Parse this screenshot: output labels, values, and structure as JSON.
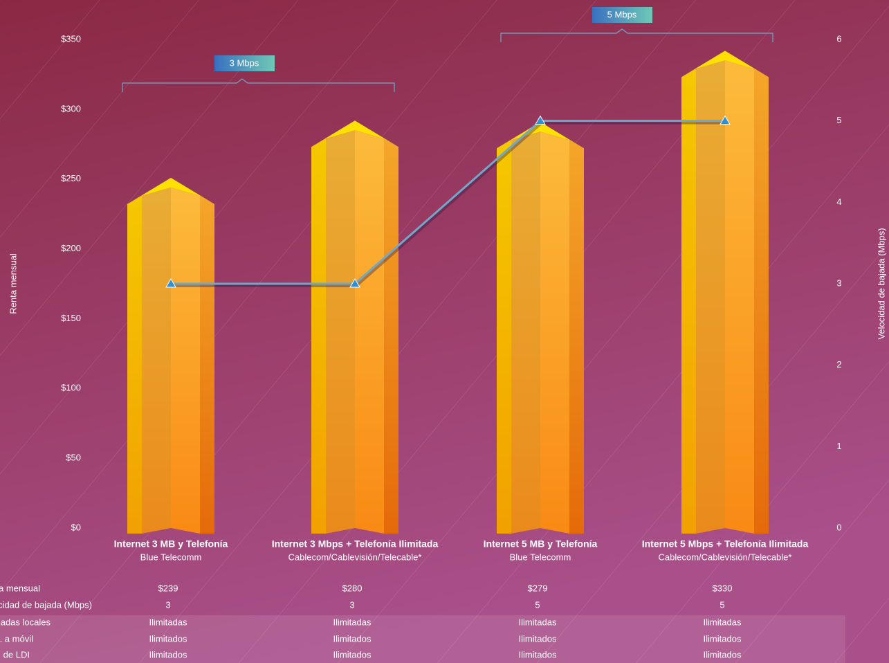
{
  "chart_data": {
    "type": "bar",
    "categories": [
      "Internet 3 MB y Telefonía",
      "Internet 3 Mbps + Telefonía Ilimitada",
      "Internet 5 MB y Telefonía",
      "Internet 5 Mbps + Telefonía Ilimitada"
    ],
    "category_sublabels": [
      "Blue Telecomm",
      "Cablecom/Cablevisión/Telecable*",
      "Blue Telecomm",
      "Cablecom/Cablevisión/Telecable*"
    ],
    "series": [
      {
        "name": "Renta mensual",
        "type": "bar",
        "color": "#fbb03b",
        "values": [
          239,
          280,
          279,
          330
        ],
        "value_labels": [
          "$239",
          "$280",
          "$279",
          "$330"
        ]
      },
      {
        "name": "Velocidad de bajada (Mbps)",
        "type": "line",
        "axis": "y2",
        "color": "#6fa8c8",
        "values": [
          3,
          3,
          5,
          5
        ]
      }
    ],
    "ylabel": "Renta  mensual",
    "y2label": "Velocidad de bajada (Mbps)",
    "ylim": [
      0,
      350
    ],
    "yticks": [
      {
        "value": 0,
        "label": "$0"
      },
      {
        "value": 50,
        "label": "$50"
      },
      {
        "value": 100,
        "label": "$100"
      },
      {
        "value": 150,
        "label": "$150"
      },
      {
        "value": 200,
        "label": "$200"
      },
      {
        "value": 250,
        "label": "$250"
      },
      {
        "value": 300,
        "label": "$300"
      },
      {
        "value": 350,
        "label": "$350"
      }
    ],
    "y2lim": [
      0,
      6
    ],
    "y2ticks": [
      0,
      1,
      2,
      3,
      4,
      5,
      6
    ],
    "annotations": [
      {
        "text": "3 Mbps"
      },
      {
        "text": "5 Mbps"
      }
    ]
  },
  "table": {
    "rows": [
      [
        "Llamadas locales",
        "Ilimitadas",
        "Ilimitadas",
        "Ilimitadas",
        "Ilimitadas"
      ],
      [
        "LD. a móvil",
        "Ilimitados",
        "Ilimitados",
        "Ilimitados",
        "Ilimitados"
      ],
      [
        "LD. de LDI",
        "Ilimitados",
        "Ilimitados",
        "Ilimitados",
        "Ilimitados"
      ]
    ]
  }
}
